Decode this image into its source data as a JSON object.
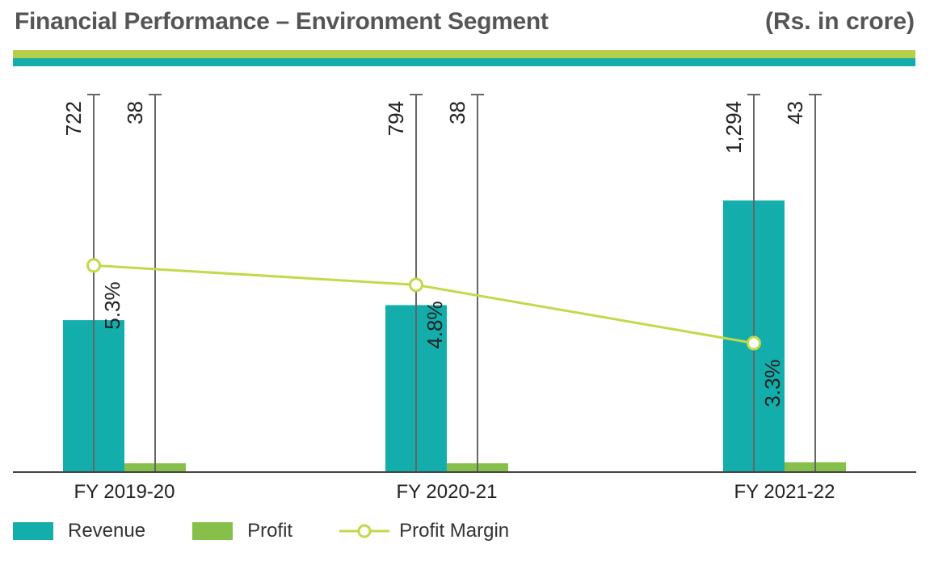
{
  "header": {
    "title": "Financial Performance – Environment Segment",
    "unit": "(Rs. in crore)"
  },
  "colors": {
    "revenue": "#13aeab",
    "profit": "#86c04a",
    "margin": "#c2d94a",
    "band_top": "#b5cf4a",
    "band_bottom": "#13aeab"
  },
  "chart_data": {
    "type": "bar",
    "title": "Financial Performance – Environment Segment",
    "categories": [
      "FY 2019-20",
      "FY 2020-21",
      "FY 2021-22"
    ],
    "series": [
      {
        "name": "Revenue",
        "values": [
          722,
          794,
          1294
        ],
        "labels": [
          "722",
          "794",
          "1,294"
        ]
      },
      {
        "name": "Profit",
        "values": [
          38,
          38,
          43
        ],
        "labels": [
          "38",
          "38",
          "43"
        ]
      },
      {
        "name": "Profit Margin",
        "type": "line",
        "values": [
          5.3,
          4.8,
          3.3
        ],
        "labels": [
          "5.3%",
          "4.8%",
          "3.3%"
        ]
      }
    ],
    "ylim": [
      0,
      1800
    ],
    "margin_ylim": [
      0,
      9.7
    ],
    "legend": "bottom-left"
  }
}
